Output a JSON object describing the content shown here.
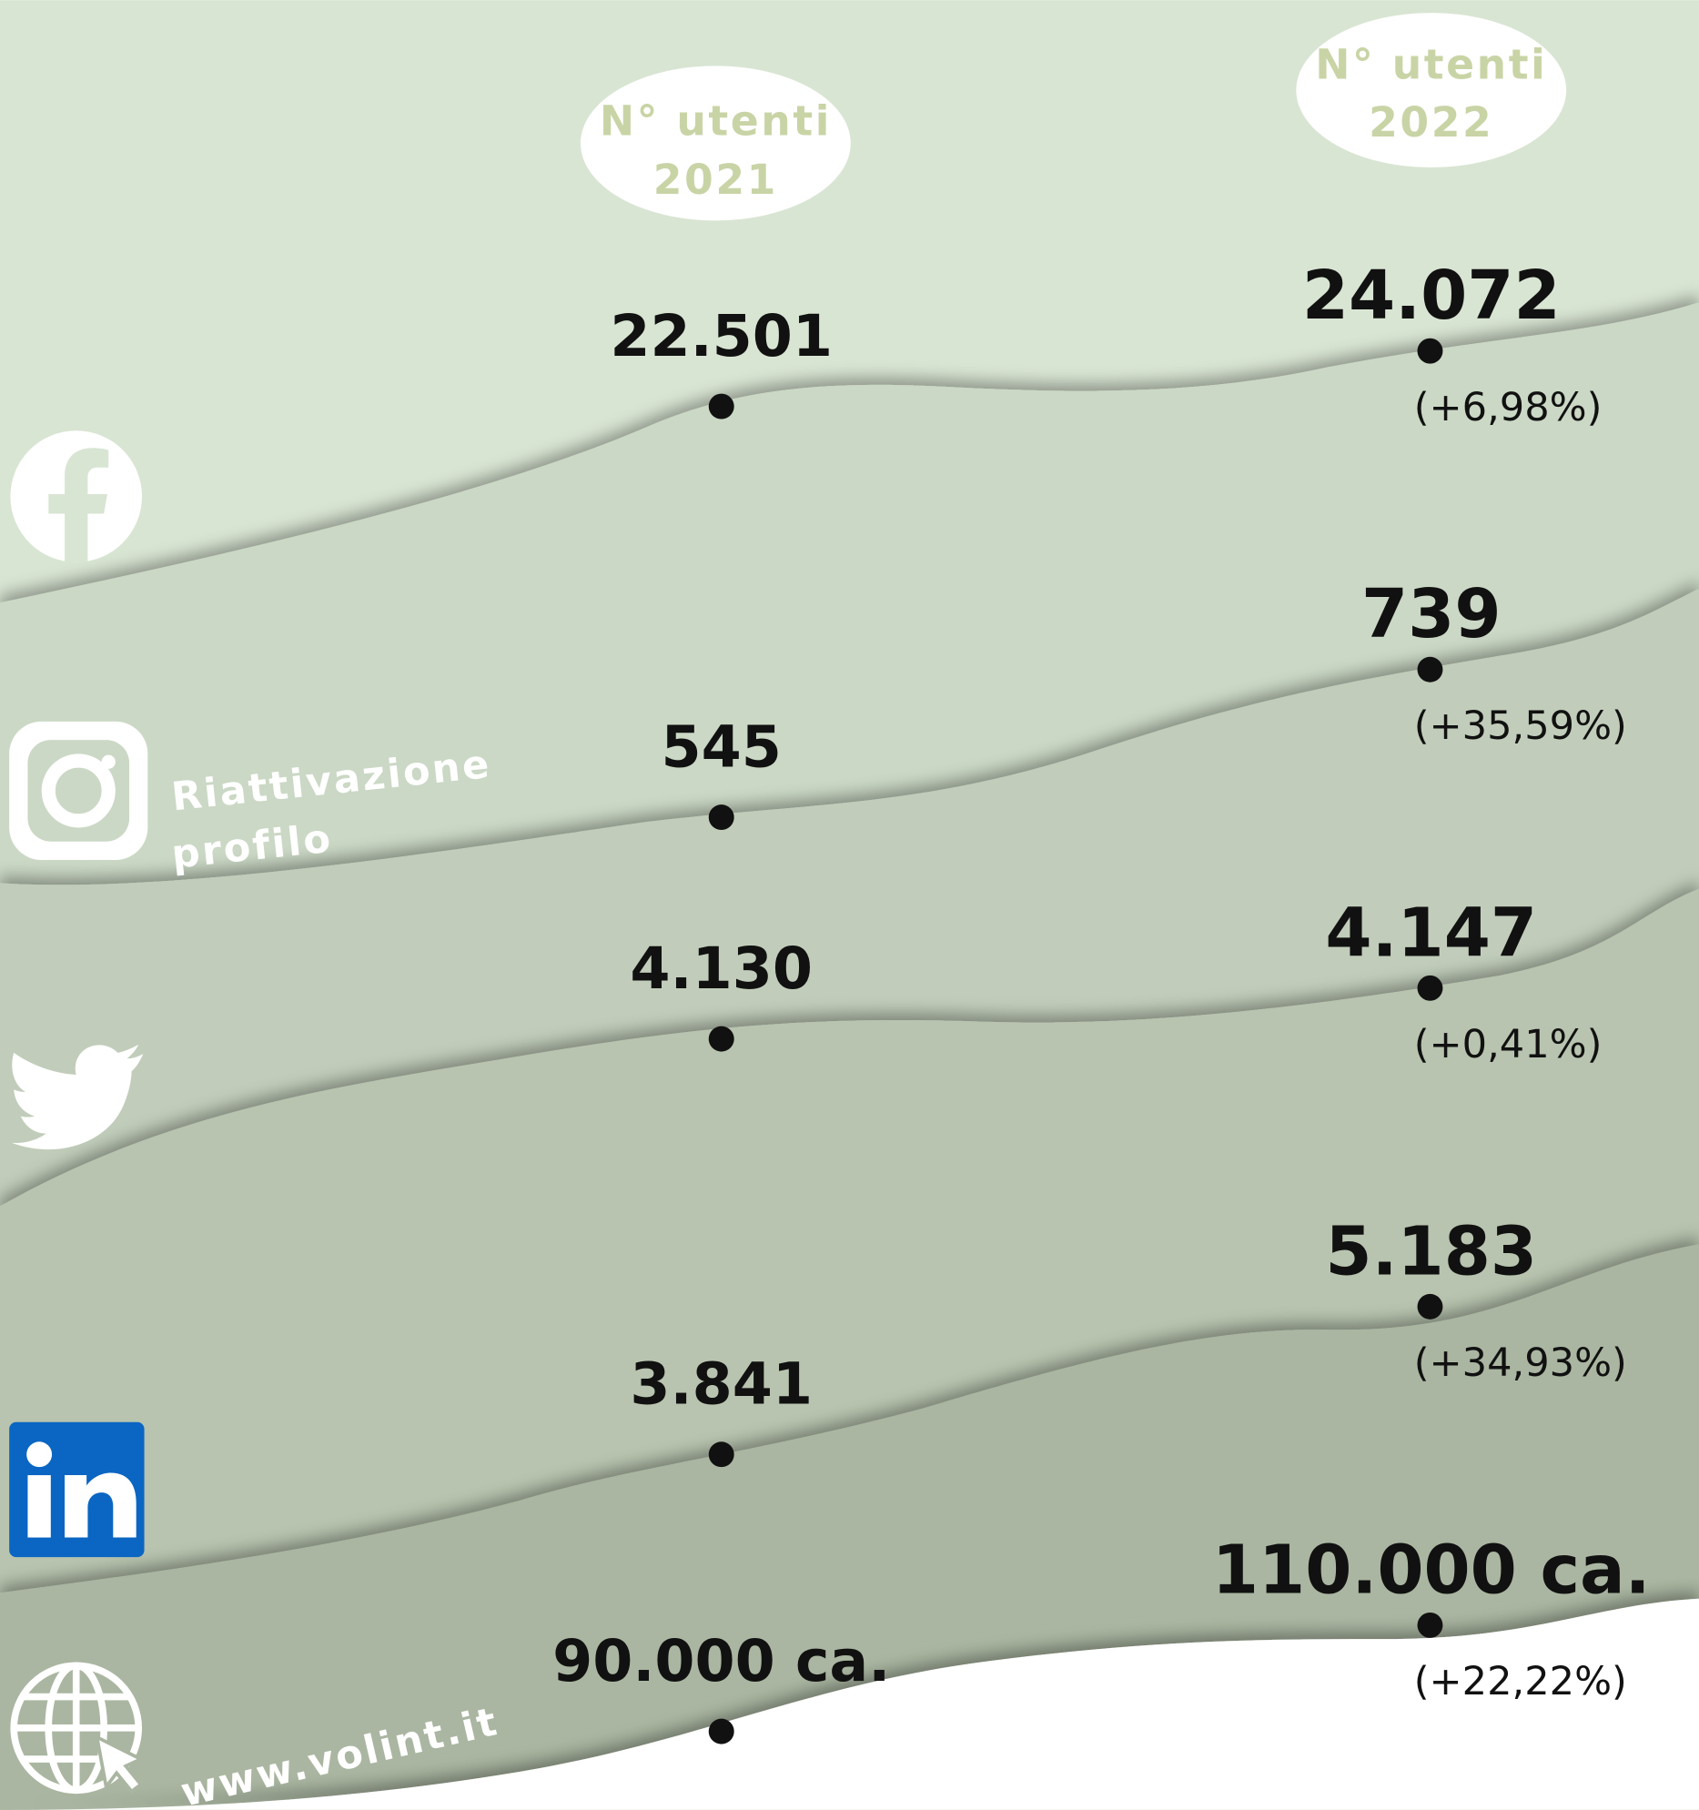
{
  "headers": [
    {
      "lines": [
        "N° utenti",
        "2021"
      ]
    },
    {
      "lines": [
        "N° utenti",
        "2022"
      ]
    }
  ],
  "rows": [
    {
      "platform_note": null,
      "value_2021": "22.501",
      "value_2022": "24.072",
      "change": "(+6,98%)"
    },
    {
      "platform_note": [
        "Riattivazione",
        "profilo"
      ],
      "value_2021": "545",
      "value_2022": "739",
      "change": "(+35,59%)"
    },
    {
      "platform_note": null,
      "value_2021": "4.130",
      "value_2022": "4.147",
      "change": "(+0,41%)"
    },
    {
      "platform_note": null,
      "value_2021": "3.841",
      "value_2022": "5.183",
      "change": "(+34,93%)"
    },
    {
      "platform_note": [
        "www.volint.it"
      ],
      "value_2021": "90.000 ca.",
      "value_2022": "110.000 ca.",
      "change": "(+22,22%)"
    }
  ]
}
